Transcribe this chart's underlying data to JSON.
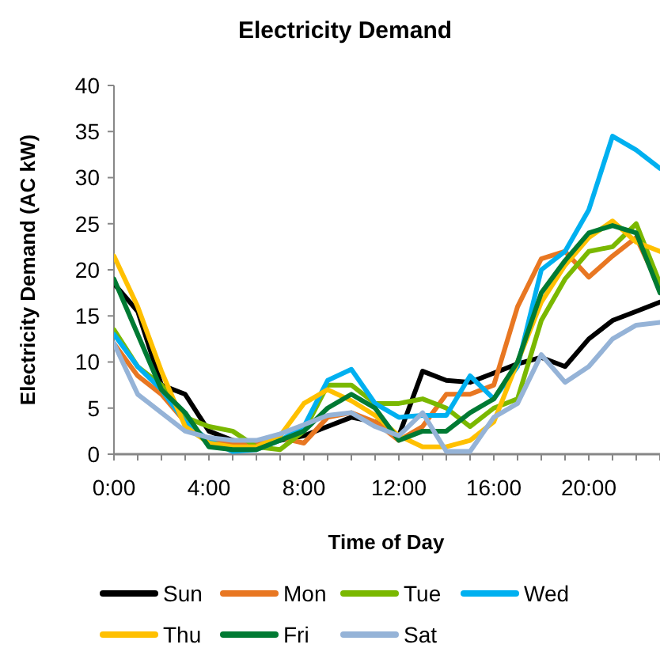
{
  "chart_data": {
    "type": "line",
    "title": "Electricity Demand",
    "xlabel": "Time of Day",
    "ylabel": "Electricity Demand (AC kW)",
    "x": [
      0,
      1,
      2,
      3,
      4,
      5,
      6,
      7,
      8,
      9,
      10,
      11,
      12,
      13,
      14,
      15,
      16,
      17,
      18,
      19,
      20,
      21,
      22,
      23
    ],
    "xlim": [
      0,
      23
    ],
    "xticks": [
      {
        "value": 0,
        "label": "0:00"
      },
      {
        "value": 1,
        "label": null
      },
      {
        "value": 2,
        "label": null
      },
      {
        "value": 3,
        "label": null
      },
      {
        "value": 4,
        "label": "4:00"
      },
      {
        "value": 5,
        "label": null
      },
      {
        "value": 6,
        "label": null
      },
      {
        "value": 7,
        "label": null
      },
      {
        "value": 8,
        "label": "8:00"
      },
      {
        "value": 9,
        "label": null
      },
      {
        "value": 10,
        "label": null
      },
      {
        "value": 11,
        "label": null
      },
      {
        "value": 12,
        "label": "12:00"
      },
      {
        "value": 13,
        "label": null
      },
      {
        "value": 14,
        "label": null
      },
      {
        "value": 15,
        "label": null
      },
      {
        "value": 16,
        "label": "16:00"
      },
      {
        "value": 17,
        "label": null
      },
      {
        "value": 18,
        "label": null
      },
      {
        "value": 19,
        "label": null
      },
      {
        "value": 20,
        "label": "20:00"
      },
      {
        "value": 21,
        "label": null
      },
      {
        "value": 22,
        "label": null
      },
      {
        "value": 23,
        "label": null
      }
    ],
    "ylim": [
      0,
      40
    ],
    "yticks": [
      0,
      5,
      10,
      15,
      20,
      25,
      30,
      35,
      40
    ],
    "grid": false,
    "legend": "bottom",
    "marker": "none",
    "line_style": "solid",
    "series": [
      {
        "name": "Sun",
        "color": "#000000",
        "values": [
          18.5,
          15.5,
          7.5,
          6.5,
          2.5,
          1.5,
          1,
          1.5,
          2,
          3,
          4,
          3.5,
          2,
          9,
          8,
          7.8,
          8.8,
          9.8,
          10.5,
          9.5,
          12.5,
          14.5,
          15.5,
          16.5
        ]
      },
      {
        "name": "Mon",
        "color": "#e87722",
        "values": [
          12,
          8.5,
          6.5,
          3.5,
          1.5,
          1.2,
          1.2,
          1.8,
          1.2,
          4,
          4.5,
          3.5,
          1.5,
          3,
          6.5,
          6.5,
          7.5,
          16,
          21.2,
          22,
          19.2,
          21.5,
          23.5,
          18
        ]
      },
      {
        "name": "Tue",
        "color": "#7ab800",
        "values": [
          13.5,
          9.5,
          7.5,
          4,
          3,
          2.5,
          0.8,
          0.5,
          2.5,
          7.5,
          7.5,
          5.5,
          5.5,
          6,
          5,
          3,
          5,
          6,
          14.5,
          19,
          22,
          22.5,
          25,
          18.5
        ]
      },
      {
        "name": "Wed",
        "color": "#00b0f0",
        "values": [
          13,
          9.5,
          7,
          3.5,
          1.5,
          0.3,
          0.5,
          1.5,
          3,
          8,
          9.2,
          5.5,
          4,
          4.2,
          4.2,
          8.5,
          6,
          9.5,
          20,
          22,
          26.5,
          34.5,
          33,
          31
        ]
      },
      {
        "name": "Thu",
        "color": "#ffc000",
        "values": [
          21.5,
          16,
          9,
          3,
          1.2,
          0.8,
          0.8,
          2,
          5.5,
          7,
          5.8,
          4.2,
          2,
          0.8,
          0.8,
          1.5,
          3.5,
          10,
          16.5,
          20.5,
          23.5,
          25.3,
          23,
          22
        ]
      },
      {
        "name": "Fri",
        "color": "#007a33",
        "values": [
          19,
          13,
          7,
          4.5,
          0.8,
          0.5,
          0.5,
          1.5,
          2.5,
          5,
          6.5,
          5,
          1.5,
          2.5,
          2.5,
          4.5,
          6,
          10,
          17.5,
          21,
          24,
          24.8,
          24,
          17.5
        ]
      },
      {
        "name": "Sat",
        "color": "#95b3d7",
        "values": [
          12,
          6.5,
          4.5,
          2.5,
          1.8,
          1.5,
          1.5,
          2.2,
          3.2,
          4.2,
          4.5,
          3,
          2,
          4.5,
          0.3,
          0.3,
          4,
          5.5,
          10.8,
          7.8,
          9.5,
          12.5,
          14,
          14.3
        ]
      }
    ]
  }
}
